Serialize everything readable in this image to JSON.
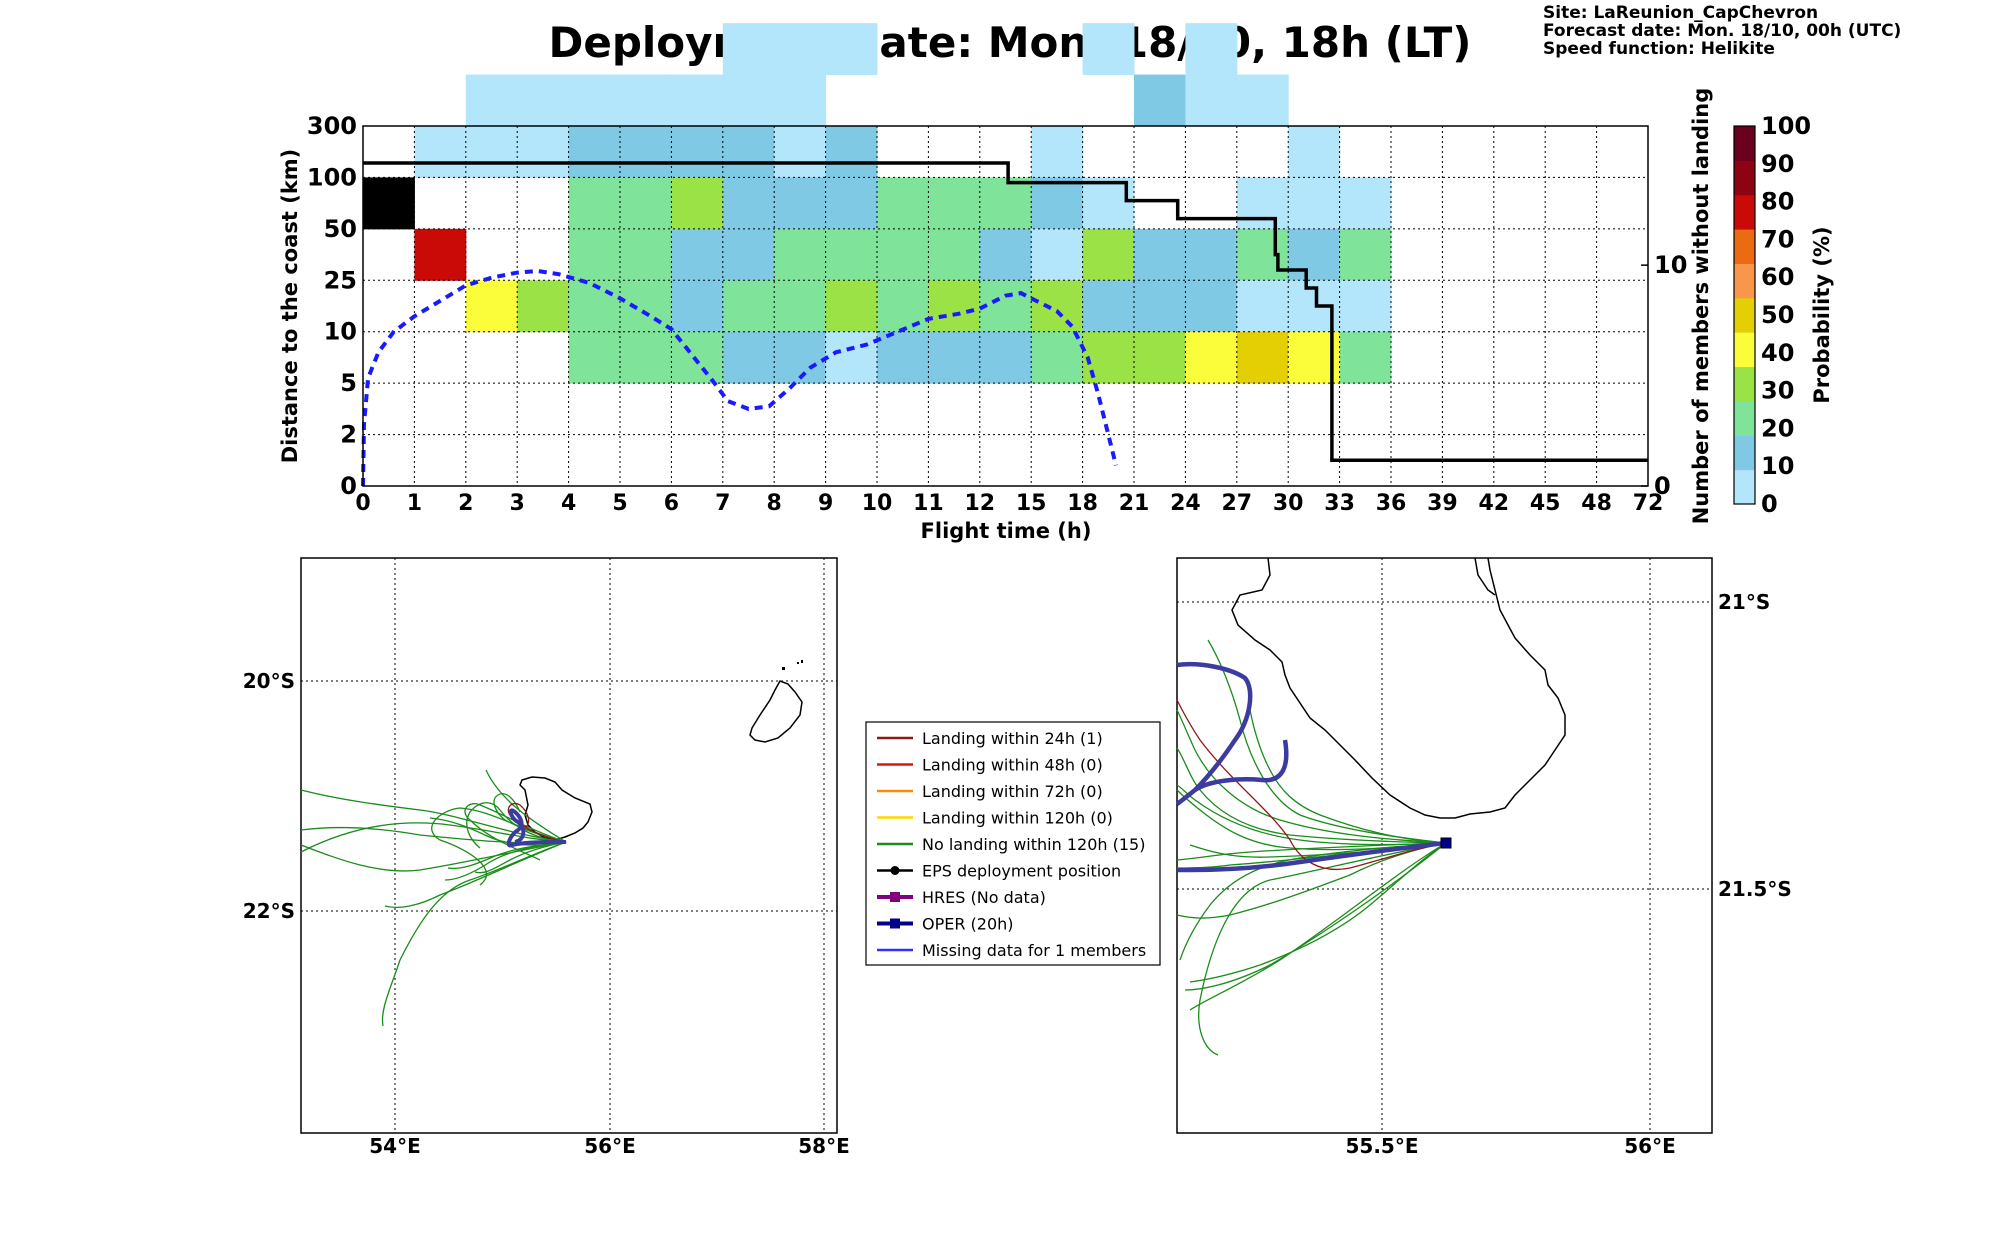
{
  "title": "Deployment date: Mon. 18/10, 18h (LT)",
  "info": {
    "site": "Site: LaReunion_CapChevron",
    "forecast": "Forecast date: Mon. 18/10, 00h (UTC)",
    "speed": "Speed function: Helikite"
  },
  "chart_data": [
    {
      "type": "heatmap",
      "xlabel": "Flight time (h)",
      "ylabel": "Distance to the coast (km)",
      "y2label": "Number of members without landing",
      "x_ticks": [
        "0",
        "1",
        "2",
        "3",
        "4",
        "5",
        "6",
        "7",
        "8",
        "9",
        "10",
        "11",
        "12",
        "15",
        "18",
        "21",
        "24",
        "27",
        "30",
        "33",
        "36",
        "39",
        "42",
        "45",
        "48",
        "72"
      ],
      "y_ticks": [
        "0",
        "2",
        "5",
        "10",
        "25",
        "50",
        "100",
        "300"
      ],
      "y2_ticks": [
        "0",
        "10"
      ],
      "colorbar": {
        "label": "Probability (%)",
        "ticks": [
          "0",
          "10",
          "20",
          "30",
          "40",
          "50",
          "60",
          "70",
          "80",
          "90",
          "100"
        ],
        "colors": [
          "#b3e5fb",
          "#7fc9e4",
          "#80e39a",
          "#9be247",
          "#fcfd3a",
          "#e3cf03",
          "#f8964c",
          "#ea6b12",
          "#c90a06",
          "#8d0314",
          "#6a001e"
        ]
      },
      "cells": [
        [
          0,
          5,
          11
        ],
        [
          1,
          4,
          8
        ],
        [
          2,
          3,
          4
        ],
        [
          3,
          3,
          3
        ],
        [
          1,
          6,
          0
        ],
        [
          2,
          6,
          0
        ],
        [
          3,
          6,
          0
        ],
        [
          2,
          7,
          0
        ],
        [
          3,
          7,
          0
        ],
        [
          4,
          7,
          0
        ],
        [
          4,
          6,
          1
        ],
        [
          4,
          5,
          2
        ],
        [
          4,
          4,
          2
        ],
        [
          4,
          3,
          2
        ],
        [
          4,
          2,
          2
        ],
        [
          5,
          6,
          1
        ],
        [
          5,
          7,
          0
        ],
        [
          6,
          6,
          1
        ],
        [
          6,
          7,
          0
        ],
        [
          5,
          5,
          2
        ],
        [
          5,
          4,
          2
        ],
        [
          5,
          3,
          2
        ],
        [
          5,
          2,
          2
        ],
        [
          6,
          5,
          3
        ],
        [
          6,
          4,
          1
        ],
        [
          6,
          3,
          1
        ],
        [
          6,
          2,
          2
        ],
        [
          7,
          8,
          0
        ],
        [
          8,
          8,
          0
        ],
        [
          7,
          7,
          0
        ],
        [
          8,
          7,
          0
        ],
        [
          7,
          6,
          1
        ],
        [
          8,
          6,
          0
        ],
        [
          7,
          5,
          1
        ],
        [
          8,
          5,
          1
        ],
        [
          7,
          4,
          1
        ],
        [
          8,
          4,
          2
        ],
        [
          7,
          3,
          2
        ],
        [
          8,
          3,
          2
        ],
        [
          7,
          2,
          1
        ],
        [
          8,
          2,
          1
        ],
        [
          9,
          8,
          0
        ],
        [
          9,
          6,
          1
        ],
        [
          9,
          5,
          1
        ],
        [
          9,
          4,
          2
        ],
        [
          9,
          3,
          3
        ],
        [
          9,
          2,
          0
        ],
        [
          10,
          5,
          2
        ],
        [
          10,
          4,
          2
        ],
        [
          10,
          3,
          2
        ],
        [
          10,
          2,
          1
        ],
        [
          11,
          5,
          2
        ],
        [
          11,
          4,
          2
        ],
        [
          11,
          3,
          3
        ],
        [
          11,
          2,
          1
        ],
        [
          12,
          5,
          2
        ],
        [
          12,
          4,
          1
        ],
        [
          12,
          3,
          2
        ],
        [
          12,
          2,
          1
        ],
        [
          13,
          6,
          0
        ],
        [
          13,
          5,
          1
        ],
        [
          13,
          4,
          0
        ],
        [
          13,
          3,
          3
        ],
        [
          13,
          2,
          2
        ],
        [
          14,
          8,
          0
        ],
        [
          14,
          5,
          0
        ],
        [
          14,
          4,
          3
        ],
        [
          14,
          3,
          1
        ],
        [
          14,
          2,
          3
        ],
        [
          15,
          7,
          1
        ],
        [
          15,
          4,
          1
        ],
        [
          15,
          3,
          1
        ],
        [
          15,
          2,
          3
        ],
        [
          16,
          8,
          0
        ],
        [
          16,
          7,
          0
        ],
        [
          16,
          4,
          1
        ],
        [
          16,
          3,
          1
        ],
        [
          16,
          2,
          4
        ],
        [
          17,
          7,
          0
        ],
        [
          17,
          5,
          0
        ],
        [
          17,
          4,
          2
        ],
        [
          17,
          3,
          0
        ],
        [
          17,
          2,
          5
        ],
        [
          18,
          6,
          0
        ],
        [
          18,
          5,
          0
        ],
        [
          18,
          4,
          1
        ],
        [
          18,
          3,
          0
        ],
        [
          18,
          2,
          4
        ],
        [
          19,
          5,
          0
        ],
        [
          19,
          4,
          2
        ],
        [
          19,
          3,
          0
        ],
        [
          19,
          2,
          2
        ]
      ],
      "series": [
        {
          "name": "black step",
          "values_rows": [
            [
              0,
              6.28
            ],
            [
              12.55,
              6.28
            ],
            [
              12.55,
              5.9
            ],
            [
              14.85,
              5.9
            ],
            [
              14.85,
              5.55
            ],
            [
              15.85,
              5.55
            ],
            [
              15.85,
              5.2
            ],
            [
              17.75,
              5.2
            ],
            [
              17.75,
              4.5
            ],
            [
              17.8,
              4.5
            ],
            [
              17.8,
              4.2
            ],
            [
              18.35,
              4.2
            ],
            [
              18.35,
              3.85
            ],
            [
              18.55,
              3.85
            ],
            [
              18.55,
              3.5
            ],
            [
              18.85,
              3.5
            ],
            [
              18.85,
              0.5
            ],
            [
              25,
              0.5
            ]
          ]
        },
        {
          "name": "blue dashed",
          "values_rows": [
            [
              0,
              0
            ],
            [
              0.02,
              1.2
            ],
            [
              0.1,
              2.1
            ],
            [
              0.3,
              2.6
            ],
            [
              0.6,
              3.0
            ],
            [
              1.0,
              3.3
            ],
            [
              1.5,
              3.6
            ],
            [
              2.0,
              3.9
            ],
            [
              2.5,
              4.05
            ],
            [
              3.0,
              4.15
            ],
            [
              3.4,
              4.18
            ],
            [
              3.8,
              4.12
            ],
            [
              4.4,
              3.95
            ],
            [
              5.0,
              3.65
            ],
            [
              5.6,
              3.3
            ],
            [
              6.0,
              3.05
            ],
            [
              6.4,
              2.55
            ],
            [
              6.8,
              2.05
            ],
            [
              7.1,
              1.65
            ],
            [
              7.5,
              1.5
            ],
            [
              7.9,
              1.55
            ],
            [
              8.3,
              1.9
            ],
            [
              8.7,
              2.3
            ],
            [
              9.2,
              2.6
            ],
            [
              9.8,
              2.75
            ],
            [
              10.4,
              3.0
            ],
            [
              11.0,
              3.25
            ],
            [
              11.6,
              3.35
            ],
            [
              12.0,
              3.45
            ],
            [
              12.5,
              3.7
            ],
            [
              12.8,
              3.75
            ],
            [
              13.1,
              3.6
            ],
            [
              13.5,
              3.4
            ],
            [
              13.8,
              3.1
            ],
            [
              14.1,
              2.5
            ],
            [
              14.3,
              1.8
            ],
            [
              14.5,
              1.0
            ],
            [
              14.65,
              0.4
            ]
          ]
        }
      ]
    }
  ],
  "map_left": {
    "x_ticks": [
      "54°E",
      "56°E",
      "58°E"
    ],
    "y_ticks": [
      "20°S",
      "22°S"
    ]
  },
  "map_right": {
    "x_ticks": [
      "55.5°E",
      "56°E"
    ],
    "y_ticks": [
      "21°S",
      "21.5°S"
    ]
  },
  "legend": [
    {
      "label": "Landing within 24h (1)",
      "color": "#8b1a1a",
      "marker": "none"
    },
    {
      "label": "Landing within 48h (0)",
      "color": "#e81010",
      "marker": "none"
    },
    {
      "label": "Landing within 72h (0)",
      "color": "#ff8c00",
      "marker": "none"
    },
    {
      "label": "Landing within 120h (0)",
      "color": "#ffd700",
      "marker": "none"
    },
    {
      "label": "No landing within 120h (15)",
      "color": "#1a8c1a",
      "marker": "none"
    },
    {
      "label": "EPS deployment position",
      "color": "#000000",
      "marker": "circle"
    },
    {
      "label": "HRES (No data)",
      "color": "#800080",
      "marker": "square"
    },
    {
      "label": "OPER (20h)",
      "color": "#00008b",
      "marker": "square"
    },
    {
      "label": "Missing data for 1 members",
      "color": "#3030ff",
      "marker": "none"
    }
  ]
}
